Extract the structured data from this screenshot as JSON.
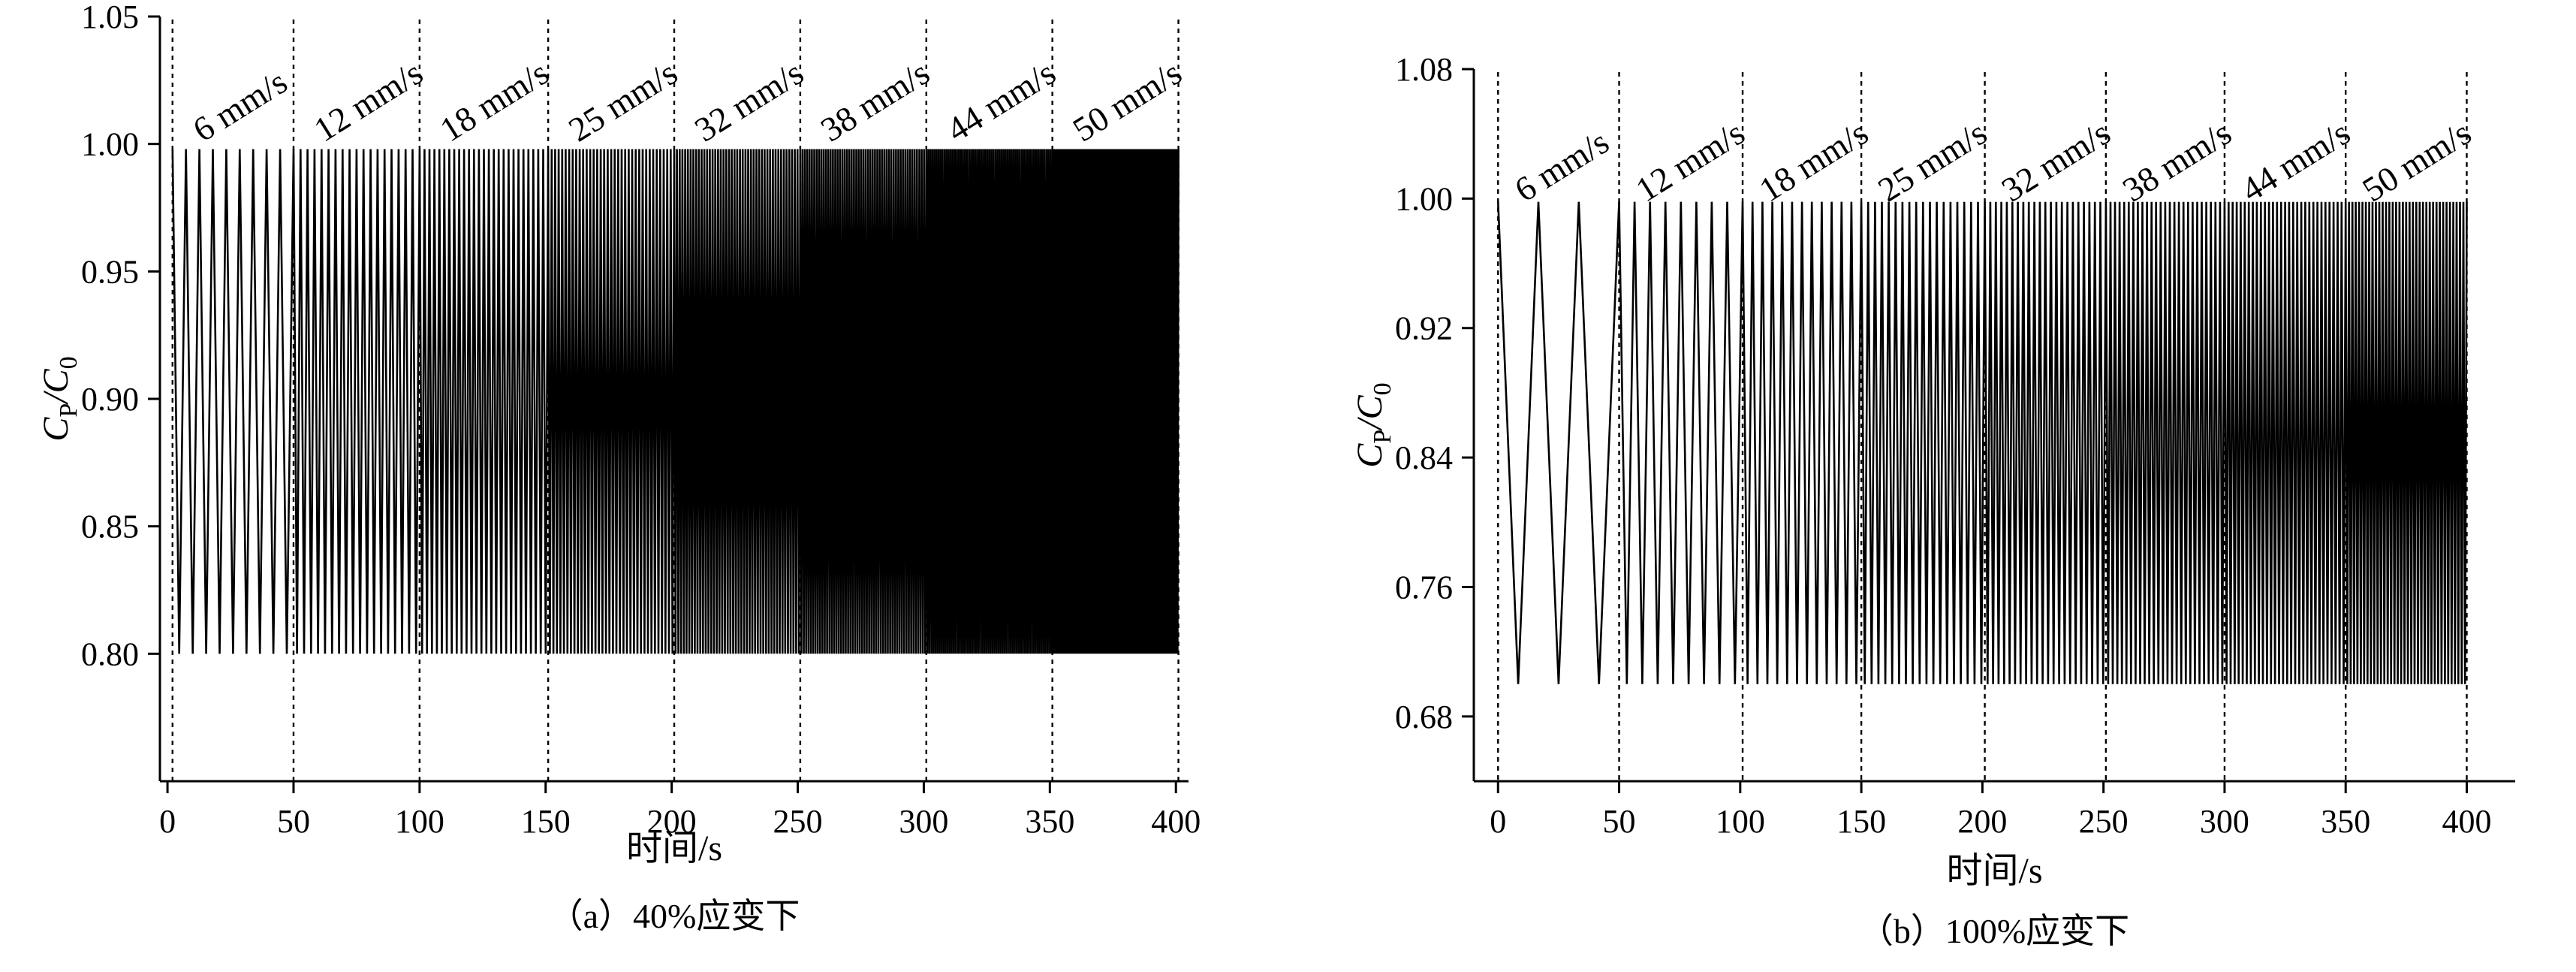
{
  "chart_data": [
    {
      "type": "line",
      "caption": "（a）40%应变下",
      "xlabel": "时间/s",
      "ylabel_main": "C",
      "ylabel_sub1": "P",
      "ylabel_slash": "/",
      "ylabel_main2": "C",
      "ylabel_sub2": "0",
      "xlim": [
        -3,
        405
      ],
      "ylim": [
        0.75,
        1.05
      ],
      "xticks": [
        0,
        50,
        100,
        150,
        200,
        250,
        300,
        350,
        400
      ],
      "yticks": [
        "0.80",
        "0.85",
        "0.90",
        "0.95",
        "1.00",
        "1.05"
      ],
      "segment_bounds": [
        2,
        50,
        100,
        151,
        201,
        251,
        301,
        351,
        401
      ],
      "speed_labels": [
        "6 mm/s",
        "12 mm/s",
        "18 mm/s",
        "25 mm/s",
        "32 mm/s",
        "38 mm/s",
        "44 mm/s",
        "50 mm/s"
      ],
      "cycles_per_segment": [
        9,
        18,
        26,
        36,
        46,
        54,
        62,
        70
      ],
      "signal_min": 0.8,
      "signal_max": 0.998
    },
    {
      "type": "line",
      "caption": "（b）100%应变下",
      "xlabel": "时间/s",
      "ylabel_main": "C",
      "ylabel_sub1": "P",
      "ylabel_slash": "/",
      "ylabel_main2": "C",
      "ylabel_sub2": "0",
      "xlim": [
        -10,
        420
      ],
      "ylim": [
        0.64,
        1.08
      ],
      "xticks": [
        0,
        50,
        100,
        150,
        200,
        250,
        300,
        350,
        400
      ],
      "yticks": [
        "0.68",
        "0.76",
        "0.84",
        "0.92",
        "1.00",
        "1.08"
      ],
      "segment_bounds": [
        0,
        50,
        101,
        150,
        201,
        251,
        300,
        350,
        400
      ],
      "speed_labels": [
        "6 mm/s",
        "12 mm/s",
        "18 mm/s",
        "25 mm/s",
        "32 mm/s",
        "38 mm/s",
        "44 mm/s",
        "50 mm/s"
      ],
      "cycles_per_segment": [
        3,
        8,
        12,
        18,
        22,
        26,
        30,
        36
      ],
      "signal_min": 0.7,
      "signal_max": 0.998
    }
  ]
}
